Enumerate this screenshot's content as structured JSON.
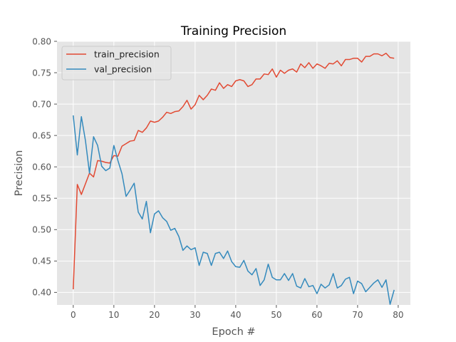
{
  "chart_data": {
    "type": "line",
    "title": "Training Precision",
    "xlabel": "Epoch #",
    "ylabel": "Precision",
    "xlim": [
      -4,
      83
    ],
    "ylim": [
      0.38,
      0.8
    ],
    "x_ticks": [
      "0",
      "10",
      "20",
      "30",
      "40",
      "50",
      "60",
      "70",
      "80"
    ],
    "y_ticks": [
      "0.40",
      "0.45",
      "0.50",
      "0.55",
      "0.60",
      "0.65",
      "0.70",
      "0.75",
      "0.80"
    ],
    "grid": true,
    "legend_position": "top-left",
    "x": [
      0,
      1,
      2,
      3,
      4,
      5,
      6,
      7,
      8,
      9,
      10,
      11,
      12,
      13,
      14,
      15,
      16,
      17,
      18,
      19,
      20,
      21,
      22,
      23,
      24,
      25,
      26,
      27,
      28,
      29,
      30,
      31,
      32,
      33,
      34,
      35,
      36,
      37,
      38,
      39,
      40,
      41,
      42,
      43,
      44,
      45,
      46,
      47,
      48,
      49,
      50,
      51,
      52,
      53,
      54,
      55,
      56,
      57,
      58,
      59,
      60,
      61,
      62,
      63,
      64,
      65,
      66,
      67,
      68,
      69,
      70,
      71,
      72,
      73,
      74,
      75,
      76,
      77,
      78,
      79
    ],
    "series": [
      {
        "name": "train_precision",
        "color": "#E24A33",
        "values": [
          0.405,
          0.572,
          0.556,
          0.573,
          0.59,
          0.584,
          0.61,
          0.609,
          0.607,
          0.606,
          0.618,
          0.617,
          0.633,
          0.637,
          0.641,
          0.642,
          0.658,
          0.655,
          0.662,
          0.673,
          0.671,
          0.673,
          0.679,
          0.687,
          0.685,
          0.688,
          0.689,
          0.696,
          0.706,
          0.692,
          0.699,
          0.714,
          0.707,
          0.714,
          0.724,
          0.722,
          0.734,
          0.725,
          0.731,
          0.728,
          0.737,
          0.739,
          0.737,
          0.728,
          0.731,
          0.74,
          0.74,
          0.748,
          0.747,
          0.756,
          0.743,
          0.754,
          0.749,
          0.754,
          0.756,
          0.751,
          0.764,
          0.758,
          0.766,
          0.757,
          0.764,
          0.761,
          0.757,
          0.765,
          0.764,
          0.769,
          0.761,
          0.771,
          0.771,
          0.773,
          0.773,
          0.767,
          0.776,
          0.776,
          0.78,
          0.78,
          0.777,
          0.781,
          0.774,
          0.773
        ]
      },
      {
        "name": "val_precision",
        "color": "#348ABD",
        "values": [
          0.682,
          0.619,
          0.68,
          0.642,
          0.59,
          0.648,
          0.634,
          0.601,
          0.594,
          0.598,
          0.634,
          0.61,
          0.589,
          0.553,
          0.563,
          0.574,
          0.528,
          0.517,
          0.545,
          0.495,
          0.525,
          0.53,
          0.519,
          0.513,
          0.499,
          0.502,
          0.489,
          0.467,
          0.474,
          0.468,
          0.471,
          0.443,
          0.464,
          0.462,
          0.443,
          0.462,
          0.464,
          0.454,
          0.466,
          0.449,
          0.441,
          0.44,
          0.451,
          0.434,
          0.428,
          0.438,
          0.411,
          0.42,
          0.445,
          0.424,
          0.42,
          0.42,
          0.43,
          0.419,
          0.43,
          0.41,
          0.407,
          0.422,
          0.409,
          0.411,
          0.398,
          0.413,
          0.407,
          0.412,
          0.43,
          0.407,
          0.411,
          0.421,
          0.424,
          0.398,
          0.418,
          0.414,
          0.401,
          0.408,
          0.415,
          0.42,
          0.408,
          0.42,
          0.381,
          0.404
        ]
      }
    ]
  }
}
